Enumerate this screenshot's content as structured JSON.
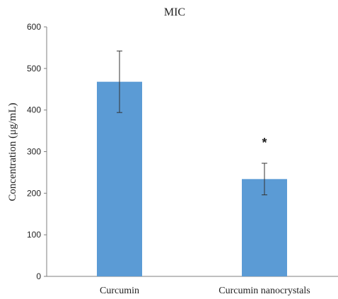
{
  "chart_data": {
    "type": "bar",
    "title": "MIC",
    "xlabel": "",
    "ylabel": "Concentration (μg/mL)",
    "categories": [
      "Curcumin",
      "Curcumin nanocrystals"
    ],
    "values": [
      468,
      234
    ],
    "errors": [
      74,
      38
    ],
    "annotations": [
      "",
      "*"
    ],
    "ylim": [
      0,
      600
    ],
    "yticks": [
      0,
      100,
      200,
      300,
      400,
      500,
      600
    ],
    "ytick_labels": [
      "0",
      "100",
      "200",
      "300",
      "400",
      "500",
      "600"
    ],
    "grid": false,
    "legend": "none",
    "bar_color": "#5b9bd5"
  }
}
